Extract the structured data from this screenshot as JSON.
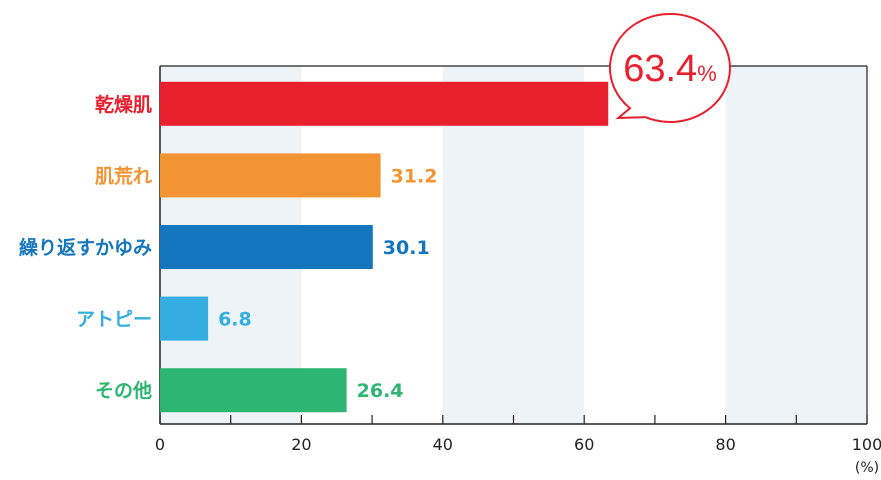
{
  "chart_data": {
    "type": "bar",
    "orientation": "horizontal",
    "categories": [
      "乾燥肌",
      "肌荒れ",
      "繰り返すかゆみ",
      "アトピー",
      "その他"
    ],
    "values": [
      63.4,
      31.2,
      30.1,
      6.8,
      26.4
    ],
    "value_labels": [
      "63.4",
      "31.2",
      "30.1",
      "6.8",
      "26.4"
    ],
    "colors": [
      "#e8202d",
      "#f39433",
      "#1476bd",
      "#33ade2",
      "#2db673"
    ],
    "xlim": [
      0,
      100
    ],
    "x_ticks": [
      0,
      20,
      40,
      60,
      80,
      100
    ],
    "x_tick_labels": [
      "0",
      "20",
      "40",
      "60",
      "80",
      "100"
    ],
    "xlabel": "(%)",
    "grid": "alternating vertical bands",
    "band_color": "#eef3f7",
    "callout": {
      "value": "63.4",
      "unit": "%",
      "color": "#e8202d"
    }
  }
}
